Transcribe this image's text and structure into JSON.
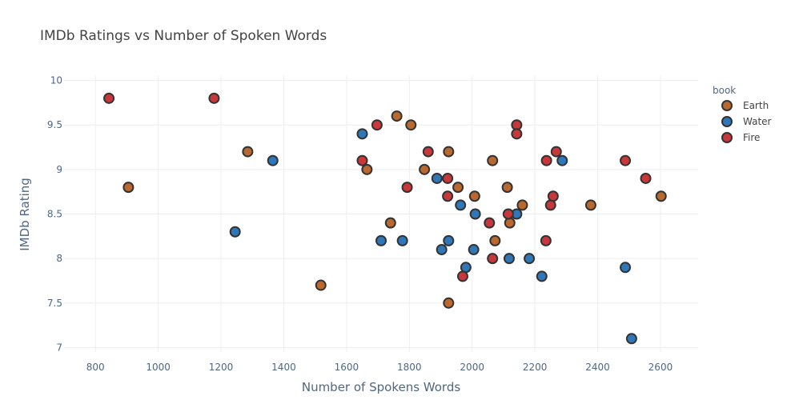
{
  "chart_data": {
    "type": "scatter",
    "title": "IMDb Ratings vs Number of Spoken Words",
    "xlabel": "Number of Spokens Words",
    "ylabel": "IMDb Rating",
    "xlim": [
      700,
      2720
    ],
    "ylim": [
      6.95,
      10.05
    ],
    "xticks": [
      800,
      1000,
      1200,
      1400,
      1600,
      1800,
      2000,
      2200,
      2400,
      2600
    ],
    "yticks": [
      7,
      7.5,
      8,
      8.5,
      9,
      9.5,
      10
    ],
    "grid": true,
    "legend": {
      "title": "book",
      "position": "top-right"
    },
    "series": [
      {
        "name": "Earth",
        "color": "#b9692f",
        "points": [
          [
            905,
            8.8
          ],
          [
            1285,
            9.2
          ],
          [
            1518,
            7.7
          ],
          [
            1665,
            9.0
          ],
          [
            1740,
            8.4
          ],
          [
            1760,
            9.6
          ],
          [
            1805,
            9.5
          ],
          [
            1848,
            9.0
          ],
          [
            1925,
            9.2
          ],
          [
            1925,
            7.5
          ],
          [
            1955,
            8.8
          ],
          [
            2008,
            8.7
          ],
          [
            2065,
            9.1
          ],
          [
            2073,
            8.2
          ],
          [
            2112,
            8.8
          ],
          [
            2120,
            8.4
          ],
          [
            2160,
            8.6
          ],
          [
            2378,
            8.6
          ],
          [
            2602,
            8.7
          ]
        ]
      },
      {
        "name": "Water",
        "color": "#2e77b8",
        "points": [
          [
            1245,
            8.3
          ],
          [
            1365,
            9.1
          ],
          [
            1650,
            9.4
          ],
          [
            1710,
            8.2
          ],
          [
            1778,
            8.2
          ],
          [
            1888,
            8.9
          ],
          [
            1903,
            8.1
          ],
          [
            1925,
            8.2
          ],
          [
            1963,
            8.6
          ],
          [
            1980,
            7.9
          ],
          [
            2005,
            8.1
          ],
          [
            2010,
            8.5
          ],
          [
            2118,
            8.0
          ],
          [
            2142,
            8.5
          ],
          [
            2182,
            8.0
          ],
          [
            2222,
            7.8
          ],
          [
            2287,
            9.1
          ],
          [
            2488,
            7.9
          ],
          [
            2508,
            7.1
          ]
        ]
      },
      {
        "name": "Fire",
        "color": "#c8373a",
        "points": [
          [
            843,
            9.8
          ],
          [
            1178,
            9.8
          ],
          [
            1650,
            9.1
          ],
          [
            1697,
            9.5
          ],
          [
            1793,
            8.8
          ],
          [
            1860,
            9.2
          ],
          [
            1922,
            8.9
          ],
          [
            1922,
            8.7
          ],
          [
            1970,
            7.8
          ],
          [
            2055,
            8.4
          ],
          [
            2065,
            8.0
          ],
          [
            2115,
            8.5
          ],
          [
            2142,
            9.5
          ],
          [
            2142,
            9.4
          ],
          [
            2235,
            8.2
          ],
          [
            2237,
            9.1
          ],
          [
            2250,
            8.6
          ],
          [
            2258,
            8.7
          ],
          [
            2268,
            9.2
          ],
          [
            2488,
            9.1
          ],
          [
            2553,
            8.9
          ]
        ]
      }
    ]
  }
}
